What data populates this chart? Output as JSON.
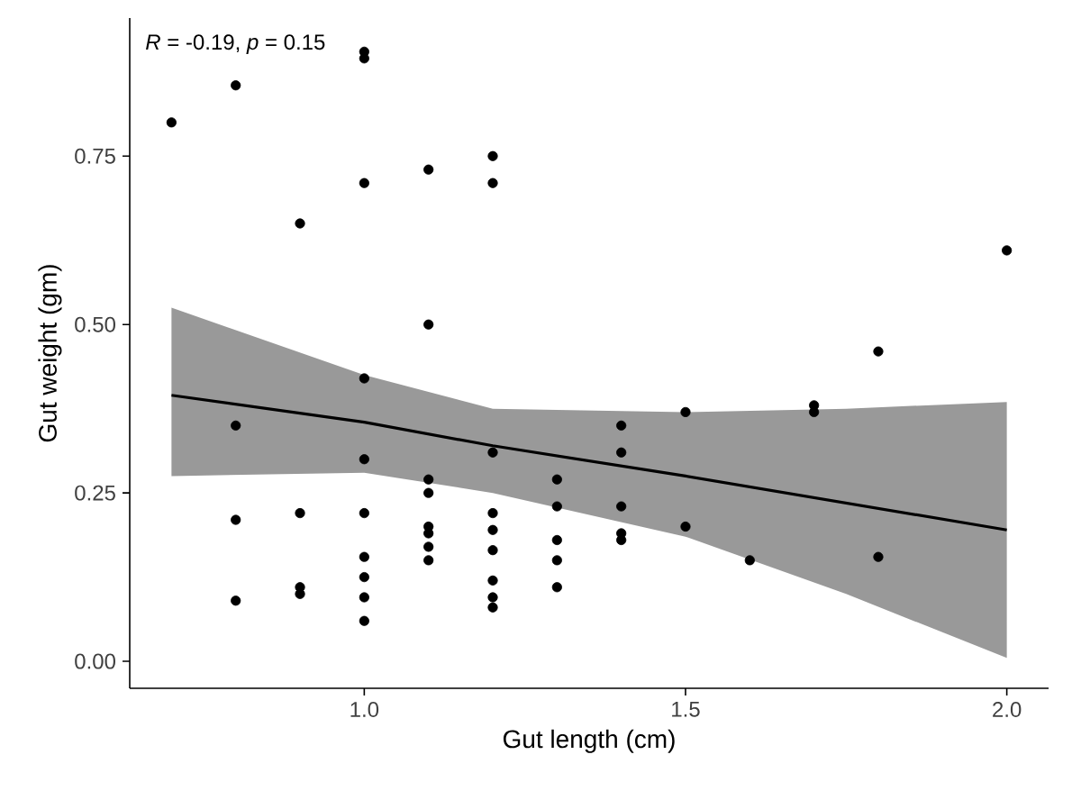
{
  "chart_data": {
    "type": "scatter",
    "xlabel": "Gut length (cm)",
    "ylabel": "Gut weight (gm)",
    "xlim": [
      0.635,
      2.065
    ],
    "ylim": [
      -0.04,
      0.955
    ],
    "xticks": [
      {
        "value": 1.0,
        "label": "1.0"
      },
      {
        "value": 1.5,
        "label": "1.5"
      },
      {
        "value": 2.0,
        "label": "2.0"
      }
    ],
    "yticks": [
      {
        "value": 0,
        "label": "0.00"
      },
      {
        "value": 0.25,
        "label": "0.25"
      },
      {
        "value": 0.5,
        "label": "0.50"
      },
      {
        "value": 0.75,
        "label": "0.75"
      }
    ],
    "annotations": [
      "*R* = -0.19, *p* = 0.15"
    ],
    "grid": false,
    "series": [
      {
        "marker": "circle",
        "color": "#000000",
        "x": [
          0.7,
          0.8,
          0.8,
          0.8,
          0.8,
          0.9,
          0.9,
          0.9,
          0.9,
          1.0,
          1.0,
          1.0,
          1.0,
          1.0,
          1.0,
          1.0,
          1.0,
          1.0,
          1.0,
          1.1,
          1.1,
          1.1,
          1.1,
          1.1,
          1.1,
          1.1,
          1.1,
          1.2,
          1.2,
          1.2,
          1.2,
          1.2,
          1.2,
          1.2,
          1.2,
          1.2,
          1.3,
          1.3,
          1.3,
          1.3,
          1.3,
          1.4,
          1.4,
          1.4,
          1.4,
          1.4,
          1.5,
          1.5,
          1.6,
          1.7,
          1.7,
          1.8,
          1.8,
          2.0
        ],
        "values": [
          0.8,
          0.855,
          0.35,
          0.21,
          0.09,
          0.65,
          0.22,
          0.11,
          0.1,
          0.905,
          0.895,
          0.71,
          0.42,
          0.3,
          0.22,
          0.155,
          0.125,
          0.095,
          0.06,
          0.73,
          0.5,
          0.27,
          0.25,
          0.2,
          0.19,
          0.17,
          0.15,
          0.75,
          0.71,
          0.31,
          0.22,
          0.195,
          0.165,
          0.12,
          0.095,
          0.08,
          0.27,
          0.23,
          0.18,
          0.15,
          0.11,
          0.35,
          0.31,
          0.23,
          0.19,
          0.18,
          0.37,
          0.2,
          0.15,
          0.38,
          0.37,
          0.46,
          0.155,
          0.61
        ]
      },
      {
        "type": "line",
        "marker": "none",
        "color": "#000000",
        "x": [
          0.7,
          1.0,
          1.2,
          1.5,
          1.75,
          2.0
        ],
        "values": [
          0.395,
          0.355,
          0.32,
          0.275,
          0.235,
          0.195
        ],
        "lower": [
          0.275,
          0.28,
          0.25,
          0.185,
          0.1,
          0.005
        ],
        "upper": [
          0.525,
          0.425,
          0.375,
          0.37,
          0.375,
          0.385
        ]
      }
    ]
  }
}
